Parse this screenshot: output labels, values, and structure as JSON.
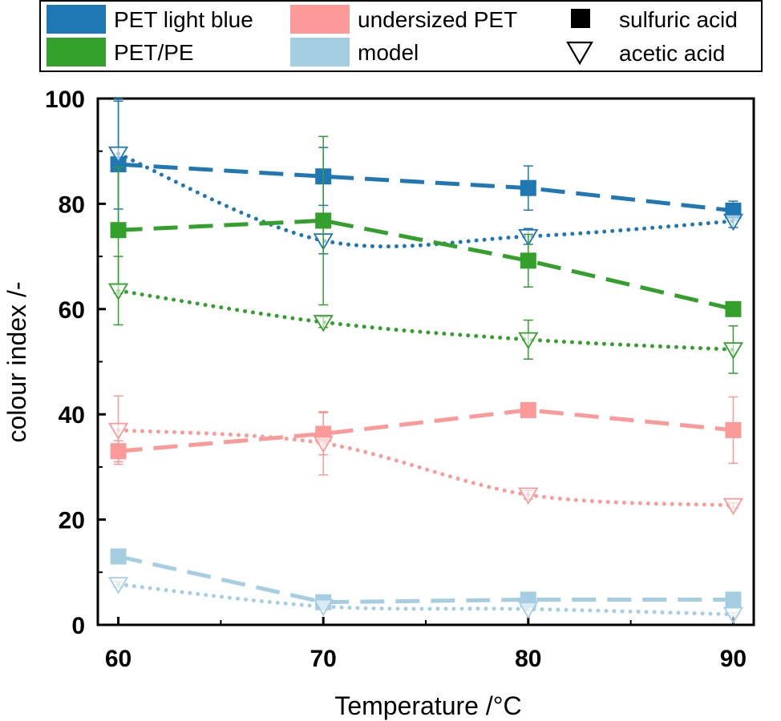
{
  "chart_data": {
    "type": "line",
    "x": [
      60,
      70,
      80,
      90
    ],
    "xlabel": "Temperature /°C",
    "ylabel": "colour index /-",
    "xlim": [
      59,
      91
    ],
    "ylim": [
      0,
      100
    ],
    "xticks": [
      60,
      70,
      80,
      90
    ],
    "yticks": [
      0,
      20,
      40,
      60,
      80,
      100
    ],
    "grid": false,
    "legend_position": "top (above plot)",
    "series_legend": [
      {
        "name": "PET light blue",
        "color": "#1f77b4"
      },
      {
        "name": "PET/PE",
        "color": "#33a02c"
      },
      {
        "name": "undersized PET",
        "color": "#fb9a99"
      },
      {
        "name": "model",
        "color": "#a6cee3"
      }
    ],
    "marker_legend": [
      {
        "name": "sulfuric acid",
        "marker": "filled-square",
        "line_style": "dashed"
      },
      {
        "name": "acetic acid",
        "marker": "open-triangle-down",
        "line_style": "dotted"
      }
    ],
    "series": [
      {
        "material": "PET light blue",
        "acid": "sulfuric acid",
        "color": "#1f77b4",
        "values": [
          87.5,
          85.2,
          83.0,
          78.7
        ],
        "errors": [
          12.0,
          5.5,
          4.2,
          1.8
        ]
      },
      {
        "material": "PET light blue",
        "acid": "acetic acid",
        "color": "#1f77b4",
        "values": [
          89.5,
          73.0,
          73.8,
          76.7
        ],
        "errors": [
          10.5,
          2.5,
          1.5,
          1.2
        ]
      },
      {
        "material": "PET/PE",
        "acid": "sulfuric acid",
        "color": "#33a02c",
        "values": [
          75.0,
          76.8,
          69.2,
          60.0
        ],
        "errors": [
          12.0,
          16.0,
          5.0,
          0.8
        ]
      },
      {
        "material": "PET/PE",
        "acid": "acetic acid",
        "color": "#33a02c",
        "values": [
          63.5,
          57.5,
          54.2,
          52.3
        ],
        "errors": [
          6.5,
          1.0,
          3.7,
          4.5
        ]
      },
      {
        "material": "undersized PET",
        "acid": "sulfuric acid",
        "color": "#fb9a99",
        "values": [
          33.0,
          36.3,
          40.8,
          37.0
        ],
        "errors": [
          2.0,
          4.0,
          0.8,
          6.3
        ]
      },
      {
        "material": "undersized PET",
        "acid": "acetic acid",
        "color": "#fb9a99",
        "values": [
          37.0,
          34.5,
          24.7,
          22.7
        ],
        "errors": [
          6.5,
          6.0,
          0.8,
          0.5
        ]
      },
      {
        "material": "model",
        "acid": "sulfuric acid",
        "color": "#a6cee3",
        "values": [
          13.0,
          4.3,
          4.8,
          4.8
        ],
        "errors": [
          0.5,
          0.3,
          0.3,
          0.3
        ]
      },
      {
        "material": "model",
        "acid": "acetic acid",
        "color": "#a6cee3",
        "values": [
          7.7,
          3.5,
          3.0,
          2.0
        ],
        "errors": [
          0.5,
          0.3,
          0.3,
          0.3
        ]
      }
    ]
  }
}
